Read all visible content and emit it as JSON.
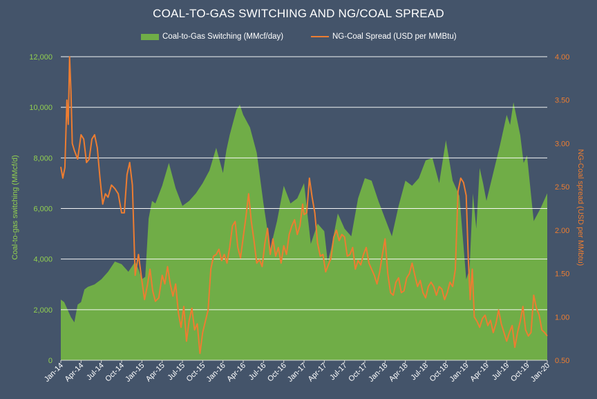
{
  "chart_data": {
    "type": "area+line",
    "title": "COAL-TO-GAS SWITCHING AND NG/COAL SPREAD",
    "legend": {
      "position": "top-center"
    },
    "x_ticks": [
      "Jan-14",
      "Apr-14",
      "Jul-14",
      "Oct-14",
      "Jan-15",
      "Apr-15",
      "Jul-15",
      "Oct-15",
      "Jan-16",
      "Apr-16",
      "Jul-16",
      "Oct-16",
      "Jan-17",
      "Apr-17",
      "Jul-17",
      "Oct-17",
      "Jan-18",
      "Apr-18",
      "Jul-18",
      "Oct-18",
      "Jan-19",
      "Apr-19",
      "Jul-19",
      "Oct-19",
      "Jan-20"
    ],
    "x_range_months": [
      0,
      72
    ],
    "y_left": {
      "label": "Coal-to-gas switching (MMcf/d)",
      "range": [
        0,
        12000
      ],
      "ticks": [
        "0",
        "2,000",
        "4,000",
        "6,000",
        "8,000",
        "10,000",
        "12,000"
      ],
      "tick_values": [
        0,
        2000,
        4000,
        6000,
        8000,
        10000,
        12000
      ],
      "gridlines": true
    },
    "y_right": {
      "label": "NG-Coal spread (USD per MMbtu)",
      "range": [
        0.5,
        4.0
      ],
      "ticks": [
        "0.50",
        "1.00",
        "1.50",
        "2.00",
        "2.50",
        "3.00",
        "3.50",
        "4.00"
      ],
      "tick_values": [
        0.5,
        1.0,
        1.5,
        2.0,
        2.5,
        3.0,
        3.5,
        4.0
      ]
    },
    "series": [
      {
        "name": "Coal-to-Gas Switching (MMcf/day)",
        "type": "area",
        "axis": "left",
        "color": "#70ad47",
        "points": [
          [
            0,
            2400
          ],
          [
            0.5,
            2300
          ],
          [
            1,
            2000
          ],
          [
            1.5,
            1700
          ],
          [
            2,
            1500
          ],
          [
            2.5,
            2200
          ],
          [
            3,
            2300
          ],
          [
            3.5,
            2800
          ],
          [
            4,
            2900
          ],
          [
            5,
            3000
          ],
          [
            6,
            3200
          ],
          [
            7,
            3500
          ],
          [
            8,
            3900
          ],
          [
            9,
            3800
          ],
          [
            10,
            3500
          ],
          [
            11,
            3900
          ],
          [
            11.5,
            3600
          ],
          [
            12,
            3200
          ],
          [
            12.5,
            3300
          ],
          [
            13,
            5600
          ],
          [
            13.5,
            6300
          ],
          [
            14,
            6200
          ],
          [
            15,
            6900
          ],
          [
            16,
            7800
          ],
          [
            17,
            6800
          ],
          [
            18,
            6100
          ],
          [
            19,
            6300
          ],
          [
            20,
            6600
          ],
          [
            21,
            7000
          ],
          [
            22,
            7500
          ],
          [
            23,
            8400
          ],
          [
            23.5,
            7900
          ],
          [
            24,
            7400
          ],
          [
            24.5,
            8300
          ],
          [
            25,
            8900
          ],
          [
            26,
            9900
          ],
          [
            26.5,
            10100
          ],
          [
            27,
            9700
          ],
          [
            28,
            9200
          ],
          [
            29,
            8200
          ],
          [
            30,
            6200
          ],
          [
            31,
            4400
          ],
          [
            32,
            5500
          ],
          [
            33,
            6900
          ],
          [
            34,
            6200
          ],
          [
            35,
            6400
          ],
          [
            36,
            7000
          ],
          [
            37,
            4600
          ],
          [
            38,
            5400
          ],
          [
            39,
            5100
          ],
          [
            39.5,
            3900
          ],
          [
            40,
            4400
          ],
          [
            41,
            5800
          ],
          [
            42,
            5200
          ],
          [
            43,
            4900
          ],
          [
            44,
            6400
          ],
          [
            45,
            7200
          ],
          [
            46,
            7100
          ],
          [
            47,
            6300
          ],
          [
            48,
            5600
          ],
          [
            49,
            4900
          ],
          [
            50,
            6100
          ],
          [
            51,
            7100
          ],
          [
            52,
            6900
          ],
          [
            53,
            7200
          ],
          [
            54,
            7900
          ],
          [
            55,
            8000
          ],
          [
            56,
            7000
          ],
          [
            57,
            8700
          ],
          [
            58,
            7100
          ],
          [
            59,
            6500
          ],
          [
            60,
            3200
          ],
          [
            60.5,
            3600
          ],
          [
            61,
            6600
          ],
          [
            61.5,
            5200
          ],
          [
            62,
            7600
          ],
          [
            62.5,
            7000
          ],
          [
            63,
            6300
          ],
          [
            64,
            7400
          ],
          [
            65,
            8500
          ],
          [
            66,
            9700
          ],
          [
            66.5,
            9300
          ],
          [
            67,
            10200
          ],
          [
            68,
            8900
          ],
          [
            68.5,
            7800
          ],
          [
            69,
            8100
          ],
          [
            70,
            5500
          ],
          [
            71,
            6000
          ],
          [
            72,
            6600
          ]
        ]
      },
      {
        "name": "NG-Coal Spread (USD per MMBtu)",
        "type": "line",
        "axis": "right",
        "color": "#ed7d31",
        "points": [
          [
            0,
            2.73
          ],
          [
            0.3,
            2.6
          ],
          [
            0.6,
            2.72
          ],
          [
            0.9,
            3.5
          ],
          [
            1.1,
            3.22
          ],
          [
            1.3,
            4.0
          ],
          [
            1.5,
            3.6
          ],
          [
            1.7,
            3.0
          ],
          [
            2,
            2.92
          ],
          [
            2.5,
            2.82
          ],
          [
            3,
            3.1
          ],
          [
            3.4,
            3.05
          ],
          [
            3.8,
            2.78
          ],
          [
            4.2,
            2.82
          ],
          [
            4.6,
            3.05
          ],
          [
            5,
            3.1
          ],
          [
            5.4,
            2.95
          ],
          [
            5.8,
            2.6
          ],
          [
            6.2,
            2.3
          ],
          [
            6.6,
            2.42
          ],
          [
            7,
            2.38
          ],
          [
            7.5,
            2.52
          ],
          [
            8,
            2.48
          ],
          [
            8.5,
            2.42
          ],
          [
            9,
            2.2
          ],
          [
            9.4,
            2.2
          ],
          [
            9.8,
            2.64
          ],
          [
            10.2,
            2.78
          ],
          [
            10.6,
            2.52
          ],
          [
            11,
            1.48
          ],
          [
            11.5,
            1.72
          ],
          [
            12,
            1.42
          ],
          [
            12.4,
            1.2
          ],
          [
            12.8,
            1.36
          ],
          [
            13.2,
            1.55
          ],
          [
            13.6,
            1.3
          ],
          [
            14,
            1.18
          ],
          [
            14.5,
            1.22
          ],
          [
            15,
            1.48
          ],
          [
            15.4,
            1.38
          ],
          [
            15.8,
            1.58
          ],
          [
            16.2,
            1.38
          ],
          [
            16.6,
            1.24
          ],
          [
            17,
            1.38
          ],
          [
            17.4,
            1.05
          ],
          [
            17.8,
            0.88
          ],
          [
            18.2,
            1.12
          ],
          [
            18.6,
            0.72
          ],
          [
            19,
            0.96
          ],
          [
            19.4,
            1.1
          ],
          [
            19.8,
            0.85
          ],
          [
            20.2,
            0.92
          ],
          [
            20.6,
            0.58
          ],
          [
            21,
            0.82
          ],
          [
            21.4,
            0.95
          ],
          [
            21.8,
            1.08
          ],
          [
            22.2,
            1.55
          ],
          [
            22.6,
            1.7
          ],
          [
            23,
            1.72
          ],
          [
            23.4,
            1.78
          ],
          [
            23.8,
            1.65
          ],
          [
            24.2,
            1.72
          ],
          [
            24.6,
            1.62
          ],
          [
            25,
            1.8
          ],
          [
            25.4,
            2.05
          ],
          [
            25.8,
            2.1
          ],
          [
            26.2,
            1.8
          ],
          [
            26.6,
            1.68
          ],
          [
            27,
            1.92
          ],
          [
            27.4,
            2.15
          ],
          [
            27.8,
            2.42
          ],
          [
            28.2,
            2.1
          ],
          [
            28.6,
            1.88
          ],
          [
            29,
            1.62
          ],
          [
            29.4,
            1.66
          ],
          [
            29.8,
            1.58
          ],
          [
            30.2,
            1.85
          ],
          [
            30.6,
            2.02
          ],
          [
            31,
            1.72
          ],
          [
            31.4,
            1.9
          ],
          [
            31.8,
            1.7
          ],
          [
            32.2,
            1.8
          ],
          [
            32.6,
            1.62
          ],
          [
            33,
            1.82
          ],
          [
            33.4,
            1.72
          ],
          [
            33.8,
            1.95
          ],
          [
            34.2,
            2.05
          ],
          [
            34.6,
            2.12
          ],
          [
            35,
            1.95
          ],
          [
            35.4,
            2.05
          ],
          [
            35.8,
            2.3
          ],
          [
            36,
            2.18
          ],
          [
            36.4,
            2.2
          ],
          [
            36.8,
            2.6
          ],
          [
            37.2,
            2.38
          ],
          [
            37.6,
            2.2
          ],
          [
            38,
            1.85
          ],
          [
            38.4,
            1.7
          ],
          [
            38.8,
            1.72
          ],
          [
            39.2,
            1.52
          ],
          [
            39.6,
            1.6
          ],
          [
            40,
            1.68
          ],
          [
            40.4,
            1.92
          ],
          [
            40.8,
            2.0
          ],
          [
            41.2,
            1.88
          ],
          [
            41.6,
            1.95
          ],
          [
            42,
            1.92
          ],
          [
            42.4,
            1.7
          ],
          [
            42.8,
            1.72
          ],
          [
            43.2,
            1.8
          ],
          [
            43.6,
            1.55
          ],
          [
            44,
            1.65
          ],
          [
            44.4,
            1.6
          ],
          [
            44.8,
            1.72
          ],
          [
            45.2,
            1.8
          ],
          [
            45.6,
            1.62
          ],
          [
            46,
            1.55
          ],
          [
            46.4,
            1.48
          ],
          [
            46.8,
            1.38
          ],
          [
            47.2,
            1.52
          ],
          [
            47.6,
            1.72
          ],
          [
            48,
            1.9
          ],
          [
            48.4,
            1.5
          ],
          [
            48.8,
            1.28
          ],
          [
            49.2,
            1.25
          ],
          [
            49.6,
            1.4
          ],
          [
            50,
            1.45
          ],
          [
            50.4,
            1.28
          ],
          [
            50.8,
            1.3
          ],
          [
            51.2,
            1.45
          ],
          [
            51.6,
            1.5
          ],
          [
            52,
            1.62
          ],
          [
            52.4,
            1.48
          ],
          [
            52.8,
            1.35
          ],
          [
            53.2,
            1.42
          ],
          [
            53.6,
            1.28
          ],
          [
            54,
            1.22
          ],
          [
            54.4,
            1.35
          ],
          [
            54.8,
            1.4
          ],
          [
            55.2,
            1.35
          ],
          [
            55.6,
            1.25
          ],
          [
            56,
            1.35
          ],
          [
            56.4,
            1.32
          ],
          [
            56.8,
            1.2
          ],
          [
            57.2,
            1.28
          ],
          [
            57.6,
            1.4
          ],
          [
            58,
            1.35
          ],
          [
            58.4,
            1.55
          ],
          [
            58.8,
            2.45
          ],
          [
            59.2,
            2.6
          ],
          [
            59.6,
            2.55
          ],
          [
            60,
            2.4
          ],
          [
            60.3,
            1.7
          ],
          [
            60.6,
            1.2
          ],
          [
            60.9,
            1.55
          ],
          [
            61.2,
            1.0
          ],
          [
            61.6,
            0.95
          ],
          [
            62,
            0.88
          ],
          [
            62.4,
            0.98
          ],
          [
            62.8,
            1.02
          ],
          [
            63.2,
            0.9
          ],
          [
            63.6,
            0.96
          ],
          [
            64,
            0.82
          ],
          [
            64.4,
            0.92
          ],
          [
            64.8,
            1.08
          ],
          [
            65.2,
            0.92
          ],
          [
            65.6,
            0.82
          ],
          [
            66,
            0.72
          ],
          [
            66.4,
            0.82
          ],
          [
            66.8,
            0.9
          ],
          [
            67.2,
            0.65
          ],
          [
            67.6,
            0.82
          ],
          [
            68,
            0.95
          ],
          [
            68.4,
            1.12
          ],
          [
            68.8,
            0.85
          ],
          [
            69.2,
            0.78
          ],
          [
            69.6,
            0.82
          ],
          [
            70,
            1.25
          ],
          [
            70.4,
            1.1
          ],
          [
            70.8,
            1.02
          ],
          [
            71.2,
            0.85
          ],
          [
            71.6,
            0.82
          ],
          [
            72,
            0.78
          ]
        ]
      }
    ]
  }
}
